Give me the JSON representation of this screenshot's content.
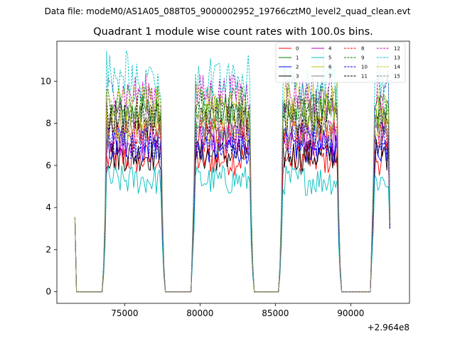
{
  "chart_data": {
    "type": "line",
    "suptitle": "Data file: modeM0/AS1A05_088T05_9000002952_19766cztM0_level2_quad_clean.evt",
    "title": "Quadrant 1 module wise count rates with 100.0s bins.",
    "xlabel": "",
    "ylabel": "",
    "x_offset_label": "+2.964e8",
    "xlim": [
      70500,
      93900
    ],
    "ylim": [
      -0.55,
      11.9
    ],
    "x_ticks": [
      75000,
      80000,
      85000,
      90000
    ],
    "x_tick_labels": [
      "75000",
      "80000",
      "85000",
      "90000"
    ],
    "y_ticks": [
      0,
      2,
      4,
      6,
      8,
      10
    ],
    "y_tick_labels": [
      "0",
      "2",
      "4",
      "6",
      "8",
      "10"
    ],
    "bin_seconds": 100,
    "legend_position": "top-right",
    "segments": [
      {
        "on_start": 73800,
        "on_end": 77400
      },
      {
        "on_start": 79650,
        "on_end": 83300
      },
      {
        "on_start": 85500,
        "on_end": 89100
      },
      {
        "on_start": 91550,
        "on_end": 92600
      }
    ],
    "idle_ranges": [
      [
        71700,
        73800
      ],
      [
        77400,
        79650
      ],
      [
        83300,
        85500
      ],
      [
        89100,
        91550
      ]
    ],
    "series": [
      {
        "name": "0",
        "color": "#ff0000",
        "dashed": false,
        "level": 6.3
      },
      {
        "name": "1",
        "color": "#008000",
        "dashed": false,
        "level": 8.5
      },
      {
        "name": "2",
        "color": "#0000ff",
        "dashed": false,
        "level": 6.9
      },
      {
        "name": "3",
        "color": "#000000",
        "dashed": false,
        "level": 6.5
      },
      {
        "name": "4",
        "color": "#bf00bf",
        "dashed": false,
        "level": 7.3
      },
      {
        "name": "5",
        "color": "#00bfbf",
        "dashed": false,
        "level": 5.3
      },
      {
        "name": "6",
        "color": "#bfbf00",
        "dashed": false,
        "level": 8.0
      },
      {
        "name": "7",
        "color": "#808080",
        "dashed": false,
        "level": 7.7
      },
      {
        "name": "8",
        "color": "#ff0000",
        "dashed": true,
        "level": 7.5
      },
      {
        "name": "9",
        "color": "#008000",
        "dashed": true,
        "level": 8.9
      },
      {
        "name": "10",
        "color": "#0000ff",
        "dashed": true,
        "level": 7.1
      },
      {
        "name": "11",
        "color": "#000000",
        "dashed": true,
        "level": 8.3
      },
      {
        "name": "12",
        "color": "#bf00bf",
        "dashed": true,
        "level": 9.4
      },
      {
        "name": "13",
        "color": "#00bfbf",
        "dashed": true,
        "level": 9.9
      },
      {
        "name": "14",
        "color": "#bfbf00",
        "dashed": true,
        "level": 9.0
      },
      {
        "name": "15",
        "color": "#808080",
        "dashed": true,
        "level": 8.2
      }
    ]
  }
}
